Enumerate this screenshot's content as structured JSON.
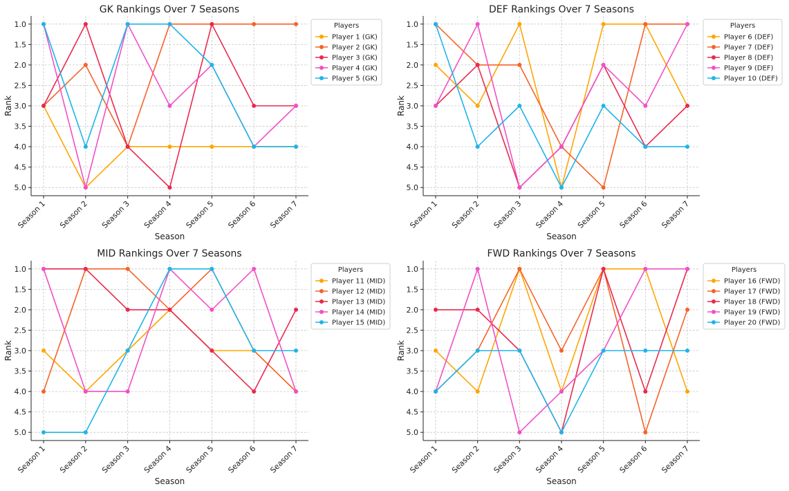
{
  "chart_data": [
    {
      "type": "line",
      "title": "GK Rankings Over 7 Seasons",
      "xlabel": "Season",
      "ylabel": "Rank",
      "categories": [
        "Season 1",
        "Season 2",
        "Season 3",
        "Season 4",
        "Season 5",
        "Season 6",
        "Season 7"
      ],
      "ylim": [
        5.2,
        0.8
      ],
      "yticks": [
        "1.0",
        "1.5",
        "2.0",
        "2.5",
        "3.0",
        "3.5",
        "4.0",
        "4.5",
        "5.0"
      ],
      "grid": true,
      "legend": {
        "title": "Players",
        "position": "right"
      },
      "series": [
        {
          "name": "Player 1 (GK)",
          "color": "#FFA500",
          "values": [
            3,
            5,
            4,
            4,
            4,
            4,
            4
          ]
        },
        {
          "name": "Player 2 (GK)",
          "color": "#F4632A",
          "values": [
            3,
            2,
            4,
            1,
            1,
            1,
            1
          ]
        },
        {
          "name": "Player 3 (GK)",
          "color": "#E8294E",
          "values": [
            3,
            1,
            4,
            5,
            1,
            3,
            3
          ]
        },
        {
          "name": "Player 4 (GK)",
          "color": "#F24FC6",
          "values": [
            1,
            5,
            1,
            3,
            2,
            4,
            3
          ]
        },
        {
          "name": "Player 5 (GK)",
          "color": "#1EB4EA",
          "values": [
            1,
            4,
            1,
            1,
            2,
            4,
            4
          ]
        }
      ]
    },
    {
      "type": "line",
      "title": "DEF Rankings Over 7 Seasons",
      "xlabel": "Season",
      "ylabel": "Rank",
      "categories": [
        "Season 1",
        "Season 2",
        "Season 3",
        "Season 4",
        "Season 5",
        "Season 6",
        "Season 7"
      ],
      "ylim": [
        5.2,
        0.8
      ],
      "yticks": [
        "1.0",
        "1.5",
        "2.0",
        "2.5",
        "3.0",
        "3.5",
        "4.0",
        "4.5",
        "5.0"
      ],
      "grid": true,
      "legend": {
        "title": "Players",
        "position": "right"
      },
      "series": [
        {
          "name": "Player 6 (DEF)",
          "color": "#FFA500",
          "values": [
            2,
            3,
            1,
            5,
            1,
            1,
            3
          ]
        },
        {
          "name": "Player 7 (DEF)",
          "color": "#F4632A",
          "values": [
            1,
            2,
            2,
            4,
            5,
            1,
            1
          ]
        },
        {
          "name": "Player 8 (DEF)",
          "color": "#E8294E",
          "values": [
            3,
            2,
            5,
            4,
            2,
            4,
            3
          ]
        },
        {
          "name": "Player 9 (DEF)",
          "color": "#F24FC6",
          "values": [
            3,
            1,
            5,
            4,
            2,
            3,
            1
          ]
        },
        {
          "name": "Player 10 (DEF)",
          "color": "#1EB4EA",
          "values": [
            1,
            4,
            3,
            5,
            3,
            4,
            4
          ]
        }
      ]
    },
    {
      "type": "line",
      "title": "MID Rankings Over 7 Seasons",
      "xlabel": "Season",
      "ylabel": "Rank",
      "categories": [
        "Season 1",
        "Season 2",
        "Season 3",
        "Season 4",
        "Season 5",
        "Season 6",
        "Season 7"
      ],
      "ylim": [
        5.2,
        0.8
      ],
      "yticks": [
        "1.0",
        "1.5",
        "2.0",
        "2.5",
        "3.0",
        "3.5",
        "4.0",
        "4.5",
        "5.0"
      ],
      "grid": true,
      "legend": {
        "title": "Players",
        "position": "right"
      },
      "series": [
        {
          "name": "Player 11 (MID)",
          "color": "#FFA500",
          "values": [
            3,
            4,
            3,
            2,
            3,
            3,
            4
          ]
        },
        {
          "name": "Player 12 (MID)",
          "color": "#F4632A",
          "values": [
            4,
            1,
            1,
            2,
            1,
            3,
            4
          ]
        },
        {
          "name": "Player 13 (MID)",
          "color": "#E8294E",
          "values": [
            1,
            1,
            2,
            2,
            3,
            4,
            2
          ]
        },
        {
          "name": "Player 14 (MID)",
          "color": "#F24FC6",
          "values": [
            1,
            4,
            4,
            1,
            2,
            1,
            4
          ]
        },
        {
          "name": "Player 15 (MID)",
          "color": "#1EB4EA",
          "values": [
            5,
            5,
            3,
            1,
            1,
            3,
            3
          ]
        }
      ]
    },
    {
      "type": "line",
      "title": "FWD Rankings Over 7 Seasons",
      "xlabel": "Season",
      "ylabel": "Rank",
      "categories": [
        "Season 1",
        "Season 2",
        "Season 3",
        "Season 4",
        "Season 5",
        "Season 6",
        "Season 7"
      ],
      "ylim": [
        5.2,
        0.8
      ],
      "yticks": [
        "1.0",
        "1.5",
        "2.0",
        "2.5",
        "3.0",
        "3.5",
        "4.0",
        "4.5",
        "5.0"
      ],
      "grid": true,
      "legend": {
        "title": "Players",
        "position": "right"
      },
      "series": [
        {
          "name": "Player 16 (FWD)",
          "color": "#FFA500",
          "values": [
            3,
            4,
            1,
            4,
            1,
            1,
            4
          ]
        },
        {
          "name": "Player 17 (FWD)",
          "color": "#F4632A",
          "values": [
            4,
            3,
            1,
            3,
            1,
            5,
            2
          ]
        },
        {
          "name": "Player 18 (FWD)",
          "color": "#E8294E",
          "values": [
            2,
            2,
            3,
            5,
            1,
            4,
            1
          ]
        },
        {
          "name": "Player 19 (FWD)",
          "color": "#F24FC6",
          "values": [
            4,
            1,
            5,
            4,
            3,
            1,
            1
          ]
        },
        {
          "name": "Player 20 (FWD)",
          "color": "#1EB4EA",
          "values": [
            4,
            3,
            3,
            5,
            3,
            3,
            3
          ]
        }
      ]
    }
  ]
}
